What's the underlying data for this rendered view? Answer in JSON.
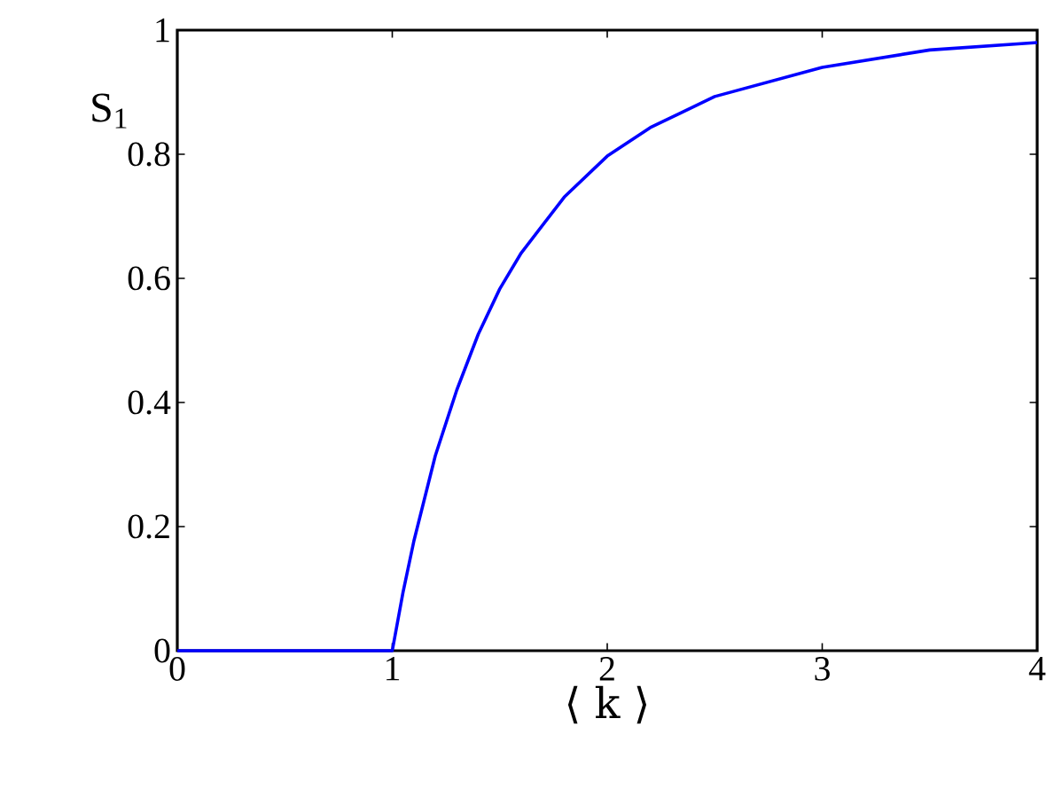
{
  "chart_data": {
    "type": "line",
    "xlabel": "⟨ k ⟩",
    "ylabel": "S$_{1}$",
    "xlim": [
      0,
      4
    ],
    "ylim": [
      0,
      1
    ],
    "xticks": [
      0,
      1,
      2,
      3,
      4
    ],
    "yticks": [
      0,
      0.2,
      0.4,
      0.6,
      0.8,
      1
    ],
    "marker": "none",
    "line_style": "solid",
    "grid": false,
    "series": [
      {
        "color": "#0000ff",
        "x": [
          0,
          0.5,
          1,
          1.05,
          1.1,
          1.2,
          1.3,
          1.4,
          1.5,
          1.6,
          1.8,
          2,
          2.2,
          2.5,
          3,
          3.5,
          4
        ],
        "values": [
          0,
          0,
          0,
          0.094,
          0.176,
          0.314,
          0.42,
          0.51,
          0.583,
          0.641,
          0.731,
          0.797,
          0.843,
          0.893,
          0.94,
          0.968,
          0.98
        ]
      }
    ]
  }
}
